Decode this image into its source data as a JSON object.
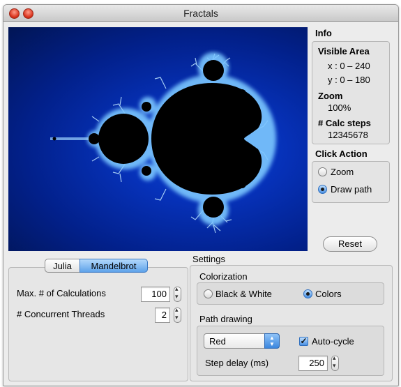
{
  "window": {
    "title": "Fractals"
  },
  "info": {
    "heading": "Info",
    "visible_area_label": "Visible Area",
    "x_range": "x : 0 – 240",
    "y_range": "y : 0 – 180",
    "zoom_label": "Zoom",
    "zoom_value": "100%",
    "calc_steps_label": "# Calc steps",
    "calc_steps_value": "12345678"
  },
  "click_action": {
    "heading": "Click Action",
    "options": [
      "Zoom",
      "Draw path"
    ],
    "selected": "Draw path"
  },
  "reset_label": "Reset",
  "tabs": {
    "items": [
      "Julia",
      "Mandelbrot"
    ],
    "selected": "Mandelbrot"
  },
  "calc": {
    "max_calc_label": "Max. # of Calculations",
    "max_calc_value": "100",
    "threads_label": "# Concurrent Threads",
    "threads_value": "2"
  },
  "settings": {
    "heading": "Settings",
    "colorization": {
      "heading": "Colorization",
      "options": [
        "Black & White",
        "Colors"
      ],
      "selected": "Colors"
    },
    "path_drawing": {
      "heading": "Path drawing",
      "color_select": "Red",
      "auto_cycle_label": "Auto-cycle",
      "auto_cycle_checked": true,
      "step_delay_label": "Step delay (ms)",
      "step_delay_value": "250"
    }
  },
  "colors": {
    "accent": "#3b86de",
    "fractal_bg": "#0631b8",
    "fractal_set": "#000000"
  }
}
